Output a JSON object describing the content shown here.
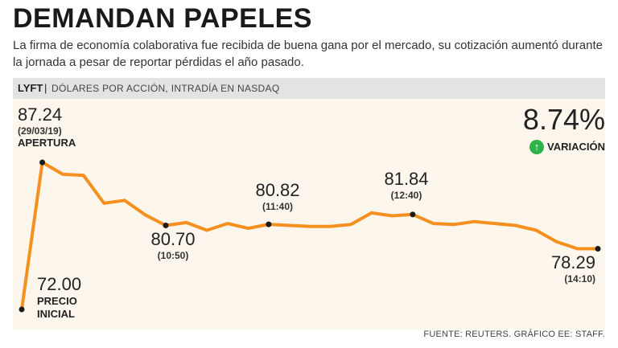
{
  "header": {
    "title": "DEMANDAN PAPELES",
    "subtitle": "La firma de economía colaborativa fue recibida de buena gana por el mercado, su cotización aumentó durante la jornada a pesar de reportar pérdidas el año pasado."
  },
  "bar": {
    "ticker": "LYFT",
    "separator": "|",
    "unit": "DÓLARES POR ACCIÓN, INTRADÍA EN NASDAQ"
  },
  "variation": {
    "value": "8.74%",
    "label": "VARIACIÓN",
    "icon": "arrow-up-icon",
    "color": "#2db34a"
  },
  "source": "FUENTE: REUTERS. GRÁFICO EE: STAFF.",
  "colors": {
    "line": "#f5901e",
    "point": "#1a1a1a",
    "background": "#fdf6ed"
  },
  "chart_data": {
    "type": "line",
    "title": "DEMANDAN PAPELES",
    "ylabel": "DÓLARES POR ACCIÓN",
    "ylim": [
      71,
      89
    ],
    "series": [
      {
        "name": "LYFT",
        "values": [
          72.0,
          87.24,
          86.0,
          85.9,
          83.0,
          83.3,
          81.8,
          80.7,
          81.0,
          80.2,
          80.9,
          80.4,
          80.82,
          80.7,
          80.6,
          80.6,
          80.8,
          82.0,
          81.7,
          81.84,
          80.9,
          80.8,
          81.1,
          80.9,
          80.7,
          80.2,
          79.0,
          78.3,
          78.29
        ]
      }
    ],
    "annotations": [
      {
        "index": 0,
        "value": "72.00",
        "caption": [
          "PRECIO",
          "INICIAL"
        ]
      },
      {
        "index": 1,
        "value": "87.24",
        "date": "(29/03/19)",
        "caption": [
          "APERTURA"
        ]
      },
      {
        "index": 7,
        "value": "80.70",
        "time": "(10:50)"
      },
      {
        "index": 12,
        "value": "80.82",
        "time": "(11:40)"
      },
      {
        "index": 19,
        "value": "81.84",
        "time": "(12:40)"
      },
      {
        "index": 28,
        "value": "78.29",
        "time": "(14:10)"
      }
    ]
  }
}
